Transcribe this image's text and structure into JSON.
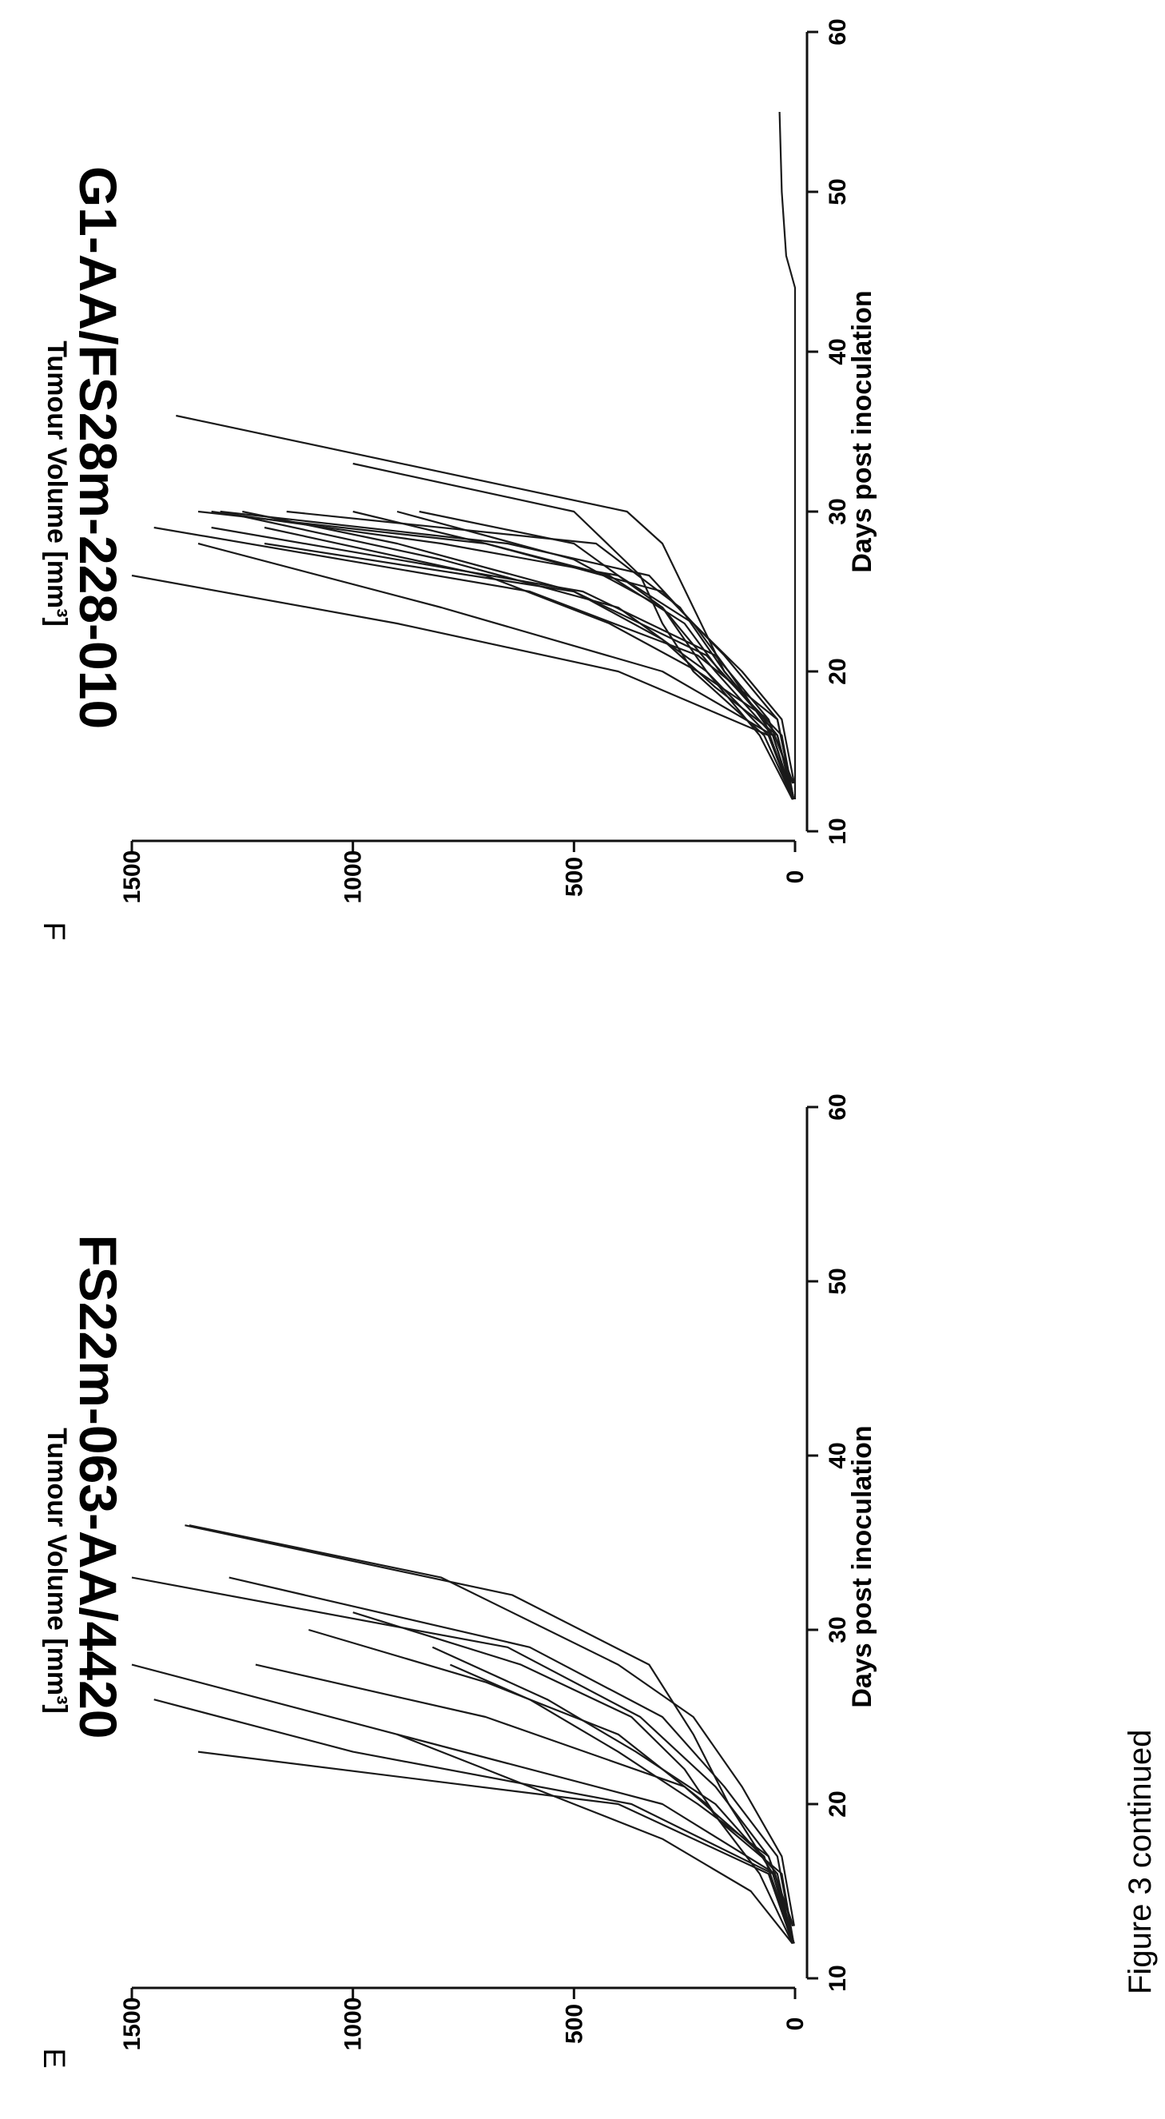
{
  "caption": "Figure 3 continued",
  "chart_data": [
    {
      "type": "line",
      "panel": "E",
      "title": "FS22m-063-AA/4420",
      "xlabel": "Days post inoculation",
      "ylabel": "Tumour Volume [mm³]",
      "xlim": [
        10,
        60
      ],
      "ylim": [
        0,
        1500
      ],
      "xticks": [
        10,
        20,
        30,
        40,
        50,
        60
      ],
      "yticks": [
        0,
        500,
        1000,
        1500
      ],
      "series": [
        {
          "x": [
            12,
            16,
            20,
            23
          ],
          "y": [
            5,
            60,
            400,
            1350
          ]
        },
        {
          "x": [
            12,
            16,
            20,
            23,
            26
          ],
          "y": [
            3,
            50,
            370,
            1000,
            1450
          ]
        },
        {
          "x": [
            12,
            16,
            20,
            24,
            28
          ],
          "y": [
            4,
            45,
            300,
            900,
            1500
          ]
        },
        {
          "x": [
            12,
            17,
            21,
            25,
            28
          ],
          "y": [
            2,
            70,
            250,
            700,
            1220
          ]
        },
        {
          "x": [
            12,
            16,
            20,
            24,
            27,
            30
          ],
          "y": [
            6,
            80,
            200,
            400,
            700,
            1100
          ]
        },
        {
          "x": [
            13,
            17,
            21,
            25,
            29,
            33
          ],
          "y": [
            5,
            60,
            180,
            350,
            650,
            1500
          ]
        },
        {
          "x": [
            12,
            17,
            21,
            25,
            29,
            33
          ],
          "y": [
            3,
            40,
            160,
            300,
            600,
            1280
          ]
        },
        {
          "x": [
            12,
            16,
            20,
            24,
            28,
            32,
            36
          ],
          "y": [
            4,
            50,
            150,
            230,
            330,
            640,
            1380
          ]
        },
        {
          "x": [
            13,
            17,
            21,
            25,
            28,
            33,
            36
          ],
          "y": [
            2,
            30,
            120,
            230,
            400,
            800,
            1370
          ]
        },
        {
          "x": [
            12,
            16,
            20,
            23,
            26,
            29
          ],
          "y": [
            5,
            40,
            180,
            360,
            560,
            820
          ]
        },
        {
          "x": [
            13,
            17,
            20,
            23,
            26,
            28
          ],
          "y": [
            4,
            60,
            220,
            400,
            600,
            780
          ]
        },
        {
          "x": [
            12,
            16,
            19,
            22,
            25,
            28,
            31
          ],
          "y": [
            3,
            30,
            170,
            250,
            370,
            620,
            1000
          ]
        },
        {
          "x": [
            12,
            15,
            18,
            20,
            22,
            24
          ],
          "y": [
            6,
            100,
            300,
            500,
            700,
            900
          ]
        }
      ]
    },
    {
      "type": "line",
      "panel": "F",
      "title": "G1-AA/FS28m-228-010",
      "xlabel": "Days post inoculation",
      "ylabel": "Tumour Volume [mm³]",
      "xlim": [
        10,
        60
      ],
      "ylim": [
        0,
        1500
      ],
      "xticks": [
        10,
        20,
        30,
        40,
        50,
        60
      ],
      "yticks": [
        0,
        500,
        1000,
        1500
      ],
      "series": [
        {
          "x": [
            12,
            16,
            20,
            23,
            26
          ],
          "y": [
            5,
            60,
            400,
            900,
            1500
          ]
        },
        {
          "x": [
            12,
            16,
            20,
            24,
            28
          ],
          "y": [
            4,
            50,
            300,
            800,
            1350
          ]
        },
        {
          "x": [
            12,
            17,
            21,
            25,
            29
          ],
          "y": [
            3,
            40,
            220,
            600,
            1450
          ]
        },
        {
          "x": [
            12,
            17,
            21,
            25,
            28
          ],
          "y": [
            5,
            70,
            200,
            500,
            1200
          ]
        },
        {
          "x": [
            12,
            16,
            20,
            24,
            27,
            30
          ],
          "y": [
            6,
            80,
            200,
            400,
            800,
            1300
          ]
        },
        {
          "x": [
            13,
            17,
            21,
            25,
            29
          ],
          "y": [
            5,
            60,
            180,
            480,
            1320
          ]
        },
        {
          "x": [
            12,
            17,
            21,
            25,
            28,
            30
          ],
          "y": [
            3,
            40,
            160,
            300,
            700,
            1350
          ]
        },
        {
          "x": [
            12,
            16,
            20,
            23,
            26,
            28,
            30
          ],
          "y": [
            4,
            50,
            150,
            230,
            330,
            650,
            1300
          ]
        },
        {
          "x": [
            13,
            17,
            20,
            23,
            26,
            28,
            30
          ],
          "y": [
            2,
            30,
            120,
            230,
            400,
            800,
            1320
          ]
        },
        {
          "x": [
            12,
            16,
            19,
            22,
            25,
            28,
            30
          ],
          "y": [
            5,
            40,
            180,
            300,
            500,
            900,
            1250
          ]
        },
        {
          "x": [
            13,
            17,
            20,
            23,
            26,
            29
          ],
          "y": [
            4,
            60,
            220,
            420,
            700,
            1200
          ]
        },
        {
          "x": [
            12,
            16,
            20,
            23,
            26,
            28,
            30
          ],
          "y": [
            3,
            30,
            170,
            250,
            420,
            700,
            1000
          ]
        },
        {
          "x": [
            12,
            16,
            20,
            24,
            28,
            30
          ],
          "y": [
            4,
            60,
            200,
            300,
            500,
            850
          ]
        },
        {
          "x": [
            12,
            16,
            20,
            23,
            26,
            30,
            33
          ],
          "y": [
            4,
            70,
            230,
            300,
            350,
            500,
            1000
          ]
        },
        {
          "x": [
            12,
            16,
            20,
            24,
            28,
            30,
            36
          ],
          "y": [
            3,
            40,
            160,
            230,
            300,
            380,
            1400
          ]
        },
        {
          "x": [
            12,
            16,
            20,
            24,
            27,
            30
          ],
          "y": [
            5,
            50,
            180,
            300,
            500,
            900
          ]
        },
        {
          "x": [
            12,
            16,
            20,
            24,
            28,
            30
          ],
          "y": [
            3,
            40,
            160,
            260,
            450,
            1150
          ]
        },
        {
          "x": [
            12,
            20,
            30,
            44,
            46,
            50,
            55
          ],
          "y": [
            0,
            0,
            0,
            0,
            20,
            30,
            35
          ]
        }
      ]
    }
  ]
}
